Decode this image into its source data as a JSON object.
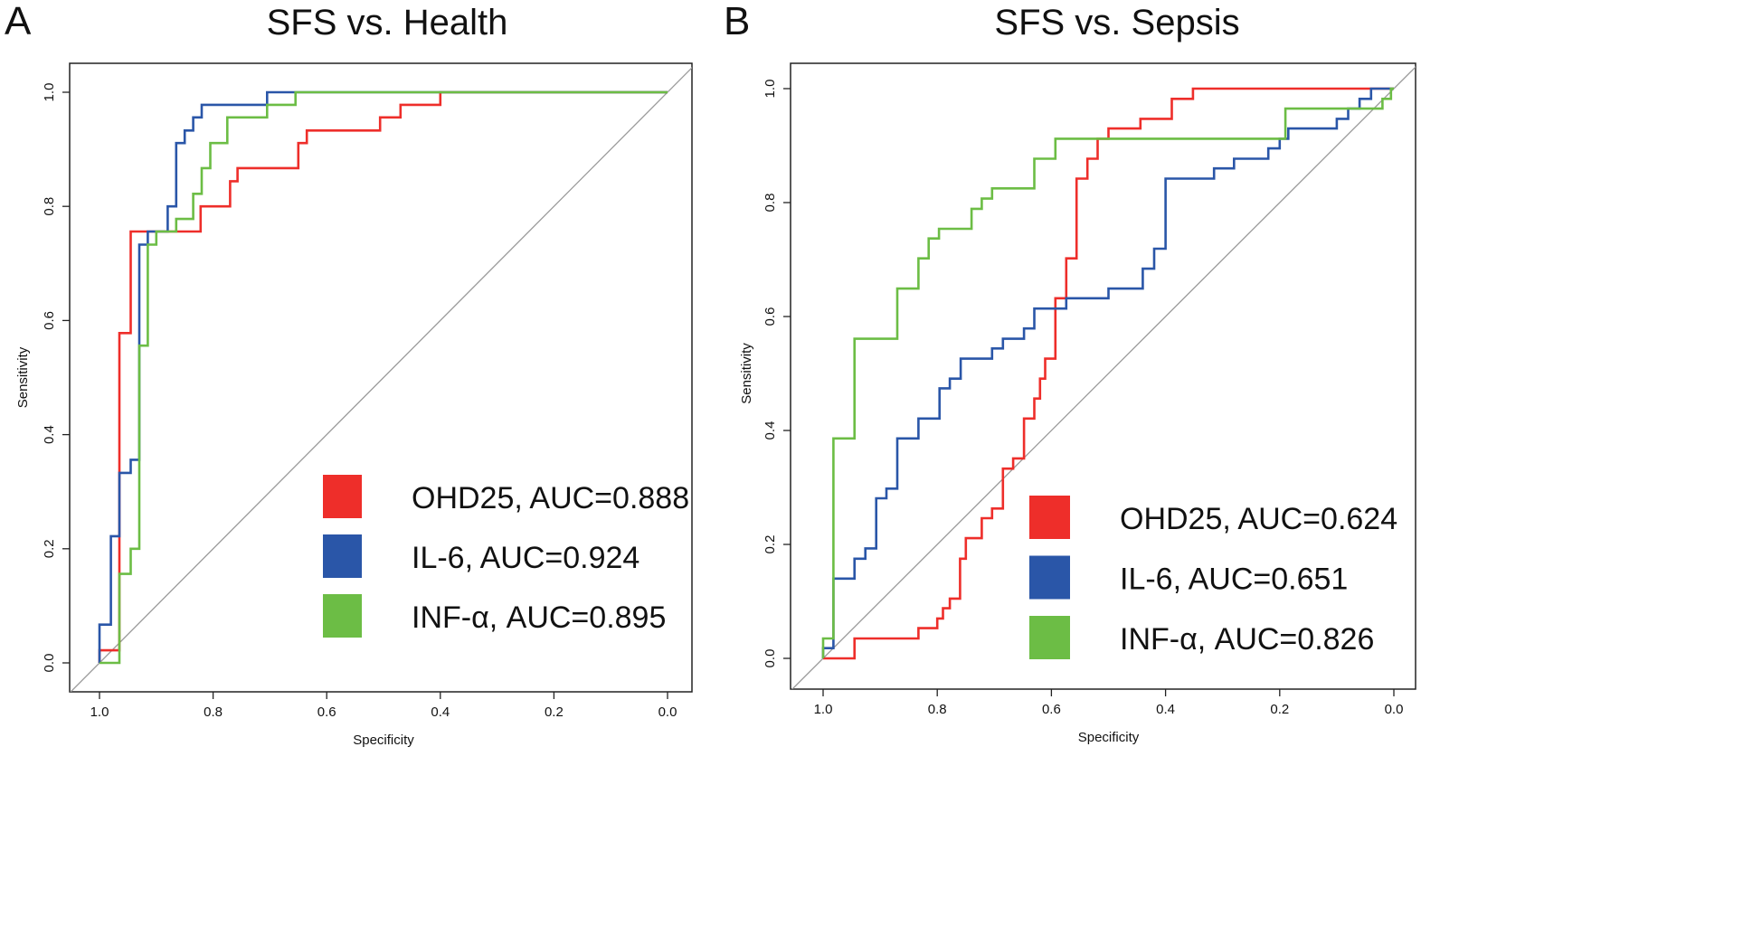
{
  "chart_data": [
    {
      "type": "line",
      "panel_label": "A",
      "title": "SFS vs. Health",
      "xlabel": "Specificity",
      "ylabel": "Sensitivity",
      "xlim": [
        1.0,
        0.0
      ],
      "ylim": [
        0.0,
        1.0
      ],
      "xticks": [
        "1.0",
        "0.8",
        "0.6",
        "0.4",
        "0.2",
        "0.0"
      ],
      "yticks": [
        "0.0",
        "0.2",
        "0.4",
        "0.6",
        "0.8",
        "1.0"
      ],
      "grid": false,
      "legend_position": "bottom-right",
      "diagonal_reference": true,
      "series": [
        {
          "name": "OHD25, AUC=0.888",
          "color": "#ee2e2a",
          "points": [
            [
              1,
              0
            ],
            [
              1,
              0.022
            ],
            [
              0.965,
              0.022
            ],
            [
              0.965,
              0.578
            ],
            [
              0.945,
              0.578
            ],
            [
              0.945,
              0.756
            ],
            [
              0.822,
              0.756
            ],
            [
              0.822,
              0.8
            ],
            [
              0.77,
              0.8
            ],
            [
              0.77,
              0.844
            ],
            [
              0.757,
              0.844
            ],
            [
              0.757,
              0.867
            ],
            [
              0.65,
              0.867
            ],
            [
              0.65,
              0.911
            ],
            [
              0.635,
              0.911
            ],
            [
              0.635,
              0.933
            ],
            [
              0.506,
              0.933
            ],
            [
              0.506,
              0.956
            ],
            [
              0.47,
              0.956
            ],
            [
              0.47,
              0.978
            ],
            [
              0.4,
              0.978
            ],
            [
              0.4,
              1
            ],
            [
              0,
              1
            ]
          ]
        },
        {
          "name": "IL-6, AUC=0.924",
          "color": "#2a56a8",
          "points": [
            [
              1,
              0
            ],
            [
              1,
              0.067
            ],
            [
              0.98,
              0.067
            ],
            [
              0.98,
              0.222
            ],
            [
              0.965,
              0.222
            ],
            [
              0.965,
              0.333
            ],
            [
              0.945,
              0.333
            ],
            [
              0.945,
              0.356
            ],
            [
              0.93,
              0.356
            ],
            [
              0.93,
              0.733
            ],
            [
              0.915,
              0.733
            ],
            [
              0.915,
              0.756
            ],
            [
              0.88,
              0.756
            ],
            [
              0.88,
              0.8
            ],
            [
              0.865,
              0.8
            ],
            [
              0.865,
              0.911
            ],
            [
              0.85,
              0.911
            ],
            [
              0.85,
              0.933
            ],
            [
              0.835,
              0.933
            ],
            [
              0.835,
              0.956
            ],
            [
              0.82,
              0.956
            ],
            [
              0.82,
              0.978
            ],
            [
              0.705,
              0.978
            ],
            [
              0.705,
              1
            ],
            [
              0,
              1
            ]
          ]
        },
        {
          "name": "INF-α, AUC=0.895",
          "color": "#6cbd45",
          "points": [
            [
              1,
              0
            ],
            [
              0.965,
              0
            ],
            [
              0.965,
              0.156
            ],
            [
              0.945,
              0.156
            ],
            [
              0.945,
              0.2
            ],
            [
              0.93,
              0.2
            ],
            [
              0.93,
              0.556
            ],
            [
              0.915,
              0.556
            ],
            [
              0.915,
              0.733
            ],
            [
              0.9,
              0.733
            ],
            [
              0.9,
              0.756
            ],
            [
              0.865,
              0.756
            ],
            [
              0.865,
              0.778
            ],
            [
              0.835,
              0.778
            ],
            [
              0.835,
              0.822
            ],
            [
              0.82,
              0.822
            ],
            [
              0.82,
              0.867
            ],
            [
              0.805,
              0.867
            ],
            [
              0.805,
              0.911
            ],
            [
              0.775,
              0.911
            ],
            [
              0.775,
              0.956
            ],
            [
              0.705,
              0.956
            ],
            [
              0.705,
              0.978
            ],
            [
              0.655,
              0.978
            ],
            [
              0.655,
              1
            ],
            [
              0,
              1
            ]
          ]
        }
      ]
    },
    {
      "type": "line",
      "panel_label": "B",
      "title": "SFS vs. Sepsis",
      "xlabel": "Specificity",
      "ylabel": "Sensitivity",
      "xlim": [
        1.0,
        0.0
      ],
      "ylim": [
        0.0,
        1.0
      ],
      "xticks": [
        "1.0",
        "0.8",
        "0.6",
        "0.4",
        "0.2",
        "0.0"
      ],
      "yticks": [
        "0.0",
        "0.2",
        "0.4",
        "0.6",
        "0.8",
        "1.0"
      ],
      "grid": false,
      "legend_position": "bottom-right",
      "diagonal_reference": true,
      "series": [
        {
          "name": "OHD25, AUC=0.624",
          "color": "#ee2e2a",
          "points": [
            [
              1,
              0
            ],
            [
              0.945,
              0
            ],
            [
              0.945,
              0.035
            ],
            [
              0.833,
              0.035
            ],
            [
              0.833,
              0.053
            ],
            [
              0.8,
              0.053
            ],
            [
              0.8,
              0.07
            ],
            [
              0.79,
              0.07
            ],
            [
              0.79,
              0.088
            ],
            [
              0.778,
              0.088
            ],
            [
              0.778,
              0.105
            ],
            [
              0.76,
              0.105
            ],
            [
              0.76,
              0.175
            ],
            [
              0.75,
              0.175
            ],
            [
              0.75,
              0.211
            ],
            [
              0.722,
              0.211
            ],
            [
              0.722,
              0.246
            ],
            [
              0.704,
              0.246
            ],
            [
              0.704,
              0.263
            ],
            [
              0.685,
              0.263
            ],
            [
              0.685,
              0.333
            ],
            [
              0.667,
              0.333
            ],
            [
              0.667,
              0.351
            ],
            [
              0.648,
              0.351
            ],
            [
              0.648,
              0.421
            ],
            [
              0.63,
              0.421
            ],
            [
              0.63,
              0.456
            ],
            [
              0.62,
              0.456
            ],
            [
              0.62,
              0.491
            ],
            [
              0.611,
              0.491
            ],
            [
              0.611,
              0.526
            ],
            [
              0.593,
              0.526
            ],
            [
              0.593,
              0.632
            ],
            [
              0.574,
              0.632
            ],
            [
              0.574,
              0.702
            ],
            [
              0.556,
              0.702
            ],
            [
              0.556,
              0.842
            ],
            [
              0.537,
              0.842
            ],
            [
              0.537,
              0.877
            ],
            [
              0.519,
              0.877
            ],
            [
              0.519,
              0.912
            ],
            [
              0.5,
              0.912
            ],
            [
              0.5,
              0.93
            ],
            [
              0.444,
              0.93
            ],
            [
              0.444,
              0.947
            ],
            [
              0.389,
              0.947
            ],
            [
              0.389,
              0.982
            ],
            [
              0.352,
              0.982
            ],
            [
              0.352,
              1
            ],
            [
              0,
              1
            ]
          ]
        },
        {
          "name": "IL-6, AUC=0.651",
          "color": "#2a56a8",
          "points": [
            [
              1,
              0
            ],
            [
              1,
              0.018
            ],
            [
              0.982,
              0.018
            ],
            [
              0.982,
              0.14
            ],
            [
              0.945,
              0.14
            ],
            [
              0.945,
              0.175
            ],
            [
              0.926,
              0.175
            ],
            [
              0.926,
              0.193
            ],
            [
              0.907,
              0.193
            ],
            [
              0.907,
              0.281
            ],
            [
              0.889,
              0.281
            ],
            [
              0.889,
              0.298
            ],
            [
              0.87,
              0.298
            ],
            [
              0.87,
              0.386
            ],
            [
              0.833,
              0.386
            ],
            [
              0.833,
              0.421
            ],
            [
              0.796,
              0.421
            ],
            [
              0.796,
              0.474
            ],
            [
              0.778,
              0.474
            ],
            [
              0.778,
              0.491
            ],
            [
              0.759,
              0.491
            ],
            [
              0.759,
              0.526
            ],
            [
              0.704,
              0.526
            ],
            [
              0.704,
              0.544
            ],
            [
              0.685,
              0.544
            ],
            [
              0.685,
              0.561
            ],
            [
              0.648,
              0.561
            ],
            [
              0.648,
              0.579
            ],
            [
              0.63,
              0.579
            ],
            [
              0.63,
              0.614
            ],
            [
              0.574,
              0.614
            ],
            [
              0.574,
              0.632
            ],
            [
              0.5,
              0.632
            ],
            [
              0.5,
              0.649
            ],
            [
              0.44,
              0.649
            ],
            [
              0.44,
              0.684
            ],
            [
              0.42,
              0.684
            ],
            [
              0.42,
              0.719
            ],
            [
              0.4,
              0.719
            ],
            [
              0.4,
              0.842
            ],
            [
              0.315,
              0.842
            ],
            [
              0.315,
              0.86
            ],
            [
              0.28,
              0.86
            ],
            [
              0.28,
              0.877
            ],
            [
              0.22,
              0.877
            ],
            [
              0.22,
              0.895
            ],
            [
              0.2,
              0.895
            ],
            [
              0.2,
              0.912
            ],
            [
              0.185,
              0.912
            ],
            [
              0.185,
              0.93
            ],
            [
              0.1,
              0.93
            ],
            [
              0.1,
              0.947
            ],
            [
              0.08,
              0.947
            ],
            [
              0.08,
              0.965
            ],
            [
              0.06,
              0.965
            ],
            [
              0.06,
              0.982
            ],
            [
              0.04,
              0.982
            ],
            [
              0.04,
              1
            ],
            [
              0,
              1
            ]
          ]
        },
        {
          "name": "INF-α, AUC=0.826",
          "color": "#6cbd45",
          "points": [
            [
              1,
              0
            ],
            [
              1,
              0.035
            ],
            [
              0.982,
              0.035
            ],
            [
              0.982,
              0.386
            ],
            [
              0.945,
              0.386
            ],
            [
              0.945,
              0.561
            ],
            [
              0.87,
              0.561
            ],
            [
              0.87,
              0.649
            ],
            [
              0.833,
              0.649
            ],
            [
              0.833,
              0.702
            ],
            [
              0.815,
              0.702
            ],
            [
              0.815,
              0.737
            ],
            [
              0.797,
              0.737
            ],
            [
              0.797,
              0.754
            ],
            [
              0.74,
              0.754
            ],
            [
              0.74,
              0.789
            ],
            [
              0.722,
              0.789
            ],
            [
              0.722,
              0.807
            ],
            [
              0.704,
              0.807
            ],
            [
              0.704,
              0.825
            ],
            [
              0.63,
              0.825
            ],
            [
              0.63,
              0.877
            ],
            [
              0.593,
              0.877
            ],
            [
              0.593,
              0.912
            ],
            [
              0.19,
              0.912
            ],
            [
              0.19,
              0.965
            ],
            [
              0.02,
              0.965
            ],
            [
              0.02,
              0.982
            ],
            [
              0.005,
              0.982
            ],
            [
              0.005,
              1
            ],
            [
              0,
              1
            ]
          ]
        }
      ]
    }
  ]
}
